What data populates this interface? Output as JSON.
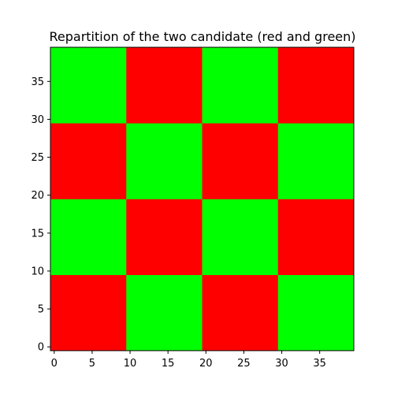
{
  "chart_data": {
    "type": "heatmap",
    "title": "Repartition of the two candidate (red and green)",
    "xlabel": "",
    "ylabel": "",
    "xlim": [
      0,
      40
    ],
    "ylim": [
      0,
      40
    ],
    "origin": "lower",
    "cell_size": 10,
    "x_ticks": [
      0,
      5,
      10,
      15,
      20,
      25,
      30,
      35
    ],
    "y_ticks": [
      0,
      5,
      10,
      15,
      20,
      25,
      30,
      35
    ],
    "grid": false,
    "legend": false,
    "candidates": [
      {
        "name": "red",
        "color": "#ff0000"
      },
      {
        "name": "green",
        "color": "#00ff00"
      }
    ],
    "rows_bottom_to_top": [
      [
        "red",
        "green",
        "red",
        "green"
      ],
      [
        "green",
        "red",
        "green",
        "red"
      ],
      [
        "red",
        "green",
        "red",
        "green"
      ],
      [
        "green",
        "red",
        "green",
        "red"
      ]
    ]
  }
}
